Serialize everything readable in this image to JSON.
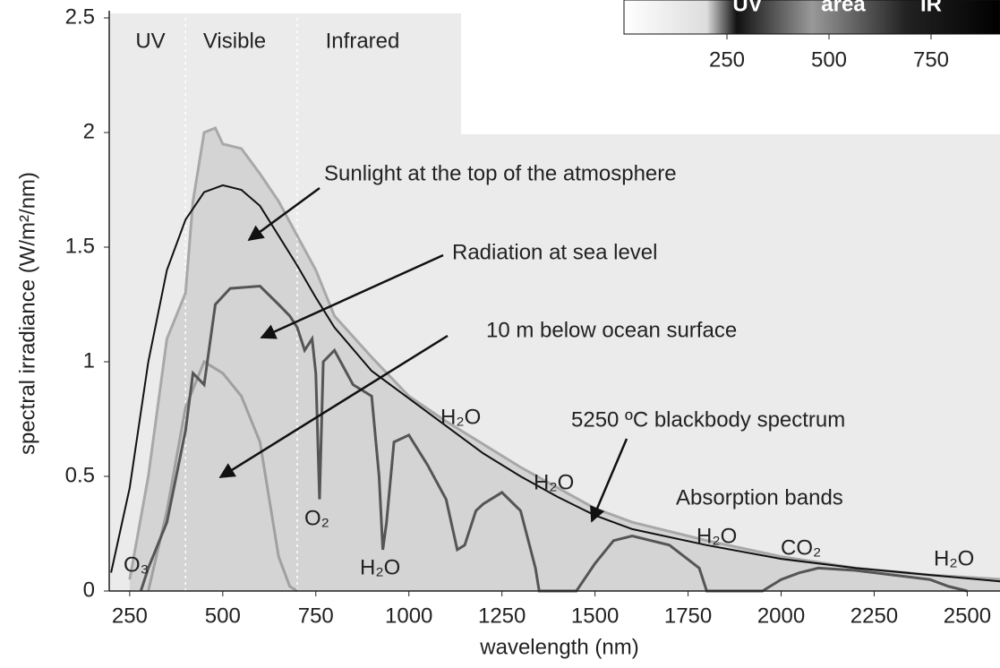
{
  "chart_data": {
    "type": "line",
    "xlabel": "wavelength (nm)",
    "ylabel": "spectral irradiance (W/m²/nm)",
    "xlim": [
      195,
      2600
    ],
    "ylim": [
      0,
      2.5
    ],
    "xticks": [
      250,
      500,
      750,
      1000,
      1250,
      1500,
      1750,
      2000,
      2250,
      2500
    ],
    "yticks": [
      0,
      0.5,
      1,
      1.5,
      2,
      2.5
    ],
    "regions": [
      "UV",
      "Visible",
      "Infrared"
    ],
    "region_lines": [
      400,
      700
    ],
    "series": [
      {
        "color": "#a8a8a8",
        "fill": "#d4d4d4",
        "x": [
          250,
          300,
          350,
          400,
          420,
          450,
          480,
          500,
          550,
          600,
          650,
          700,
          750,
          800,
          900,
          1000,
          1100,
          1200,
          1300,
          1400,
          1500,
          1600,
          1800,
          2000,
          2200,
          2400,
          2600
        ],
        "values": [
          0.05,
          0.5,
          1.1,
          1.3,
          1.7,
          2.0,
          2.02,
          1.95,
          1.93,
          1.82,
          1.7,
          1.55,
          1.4,
          1.2,
          1.02,
          0.85,
          0.74,
          0.64,
          0.54,
          0.45,
          0.36,
          0.3,
          0.22,
          0.15,
          0.1,
          0.07,
          0.05
        ]
      },
      {
        "color": "#a0a0a0",
        "x": [
          300,
          350,
          400,
          450,
          500,
          550,
          600,
          650,
          680,
          700
        ],
        "values": [
          0,
          0.35,
          0.8,
          1.0,
          0.95,
          0.85,
          0.65,
          0.15,
          0.02,
          0
        ]
      },
      {
        "color": "#555555",
        "x": [
          280,
          300,
          350,
          400,
          420,
          450,
          480,
          520,
          600,
          650,
          680,
          700,
          720,
          740,
          750,
          760,
          770,
          800,
          850,
          900,
          920,
          930,
          940,
          960,
          1000,
          1050,
          1100,
          1130,
          1150,
          1180,
          1200,
          1250,
          1300,
          1340,
          1350,
          1450,
          1500,
          1550,
          1600,
          1700,
          1780,
          1800,
          1950,
          2000,
          2050,
          2100,
          2200,
          2300,
          2400,
          2450,
          2500
        ],
        "values": [
          0,
          0.1,
          0.3,
          0.7,
          0.95,
          0.9,
          1.25,
          1.32,
          1.33,
          1.25,
          1.2,
          1.15,
          1.05,
          1.1,
          0.95,
          0.4,
          1.0,
          1.05,
          0.9,
          0.85,
          0.5,
          0.18,
          0.3,
          0.65,
          0.68,
          0.55,
          0.4,
          0.18,
          0.2,
          0.35,
          0.38,
          0.43,
          0.35,
          0.1,
          0,
          0,
          0.12,
          0.22,
          0.24,
          0.2,
          0.1,
          0,
          0,
          0.05,
          0.08,
          0.1,
          0.09,
          0.07,
          0.05,
          0.02,
          0
        ]
      },
      {
        "color": "#111111",
        "x": [
          200,
          250,
          300,
          350,
          400,
          450,
          500,
          550,
          600,
          650,
          700,
          750,
          800,
          900,
          1000,
          1100,
          1200,
          1300,
          1400,
          1500,
          1600,
          1800,
          2000,
          2200,
          2400,
          2600
        ],
        "values": [
          0.08,
          0.45,
          1.0,
          1.4,
          1.62,
          1.74,
          1.77,
          1.75,
          1.68,
          1.55,
          1.42,
          1.28,
          1.15,
          0.96,
          0.84,
          0.72,
          0.6,
          0.5,
          0.41,
          0.33,
          0.27,
          0.2,
          0.14,
          0.1,
          0.07,
          0.04
        ]
      }
    ],
    "annotations": [
      "Sunlight at the top of the atmosphere",
      "Radiation at sea level",
      "10 m below ocean surface",
      "5250 ºC blackbody spectrum",
      "Absorption bands",
      "H₂O",
      "H₂O",
      "O₂",
      "H₂O",
      "H₂O",
      "CO₂",
      "H₂O",
      "O₃"
    ],
    "inset": {
      "labels": [
        "UV",
        "area",
        "IR"
      ],
      "ticks": [
        250,
        500,
        750
      ]
    }
  }
}
